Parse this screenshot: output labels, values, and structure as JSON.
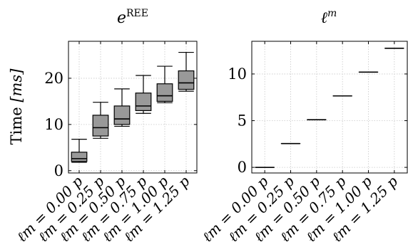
{
  "chart_data": [
    {
      "type": "box",
      "title_main": "e",
      "title_sup": "REE",
      "ylabel_text": "Time ",
      "ylabel_unit": "[ms]",
      "categories": [
        "ℓm = 0.00 p",
        "ℓm = 0.25 p",
        "ℓm = 0.50 p",
        "ℓm = 0.75 p",
        "ℓm = 1.00 p",
        "ℓm = 1.25 p"
      ],
      "boxes": [
        {
          "min": 1.8,
          "q1": 2.0,
          "median": 2.6,
          "q3": 4.0,
          "max": 6.8
        },
        {
          "min": 7.0,
          "q1": 7.5,
          "median": 9.3,
          "q3": 12.0,
          "max": 14.8
        },
        {
          "min": 9.6,
          "q1": 10.0,
          "median": 11.2,
          "q3": 14.0,
          "max": 17.7
        },
        {
          "min": 12.4,
          "q1": 13.0,
          "median": 14.0,
          "q3": 16.8,
          "max": 20.6
        },
        {
          "min": 14.7,
          "q1": 15.0,
          "median": 16.2,
          "q3": 18.8,
          "max": 22.6
        },
        {
          "min": 17.2,
          "q1": 17.6,
          "median": 19.0,
          "q3": 21.6,
          "max": 25.6
        }
      ],
      "yticks": [
        0,
        10,
        20
      ],
      "ylim": [
        -0.5,
        28.0
      ],
      "grid": true,
      "color": "#999999"
    },
    {
      "type": "box",
      "title_main": "ℓ",
      "title_sup": "m",
      "categories": [
        "ℓm = 0.00 p",
        "ℓm = 0.25 p",
        "ℓm = 0.50 p",
        "ℓm = 0.75 p",
        "ℓm = 1.00 p",
        "ℓm = 1.25 p"
      ],
      "boxes": [
        {
          "min": 0.0,
          "q1": 0.0,
          "median": 0.0,
          "q3": 0.0,
          "max": 0.0
        },
        {
          "min": 2.55,
          "q1": 2.55,
          "median": 2.55,
          "q3": 2.55,
          "max": 2.55
        },
        {
          "min": 5.1,
          "q1": 5.1,
          "median": 5.1,
          "q3": 5.1,
          "max": 5.1
        },
        {
          "min": 7.65,
          "q1": 7.65,
          "median": 7.65,
          "q3": 7.65,
          "max": 7.65
        },
        {
          "min": 10.2,
          "q1": 10.2,
          "median": 10.2,
          "q3": 10.2,
          "max": 10.2
        },
        {
          "min": 12.75,
          "q1": 12.75,
          "median": 12.75,
          "q3": 12.75,
          "max": 12.75
        }
      ],
      "yticks": [
        0,
        5,
        10
      ],
      "ylim": [
        -0.6,
        13.5
      ],
      "grid": true,
      "color": "#999999"
    }
  ]
}
